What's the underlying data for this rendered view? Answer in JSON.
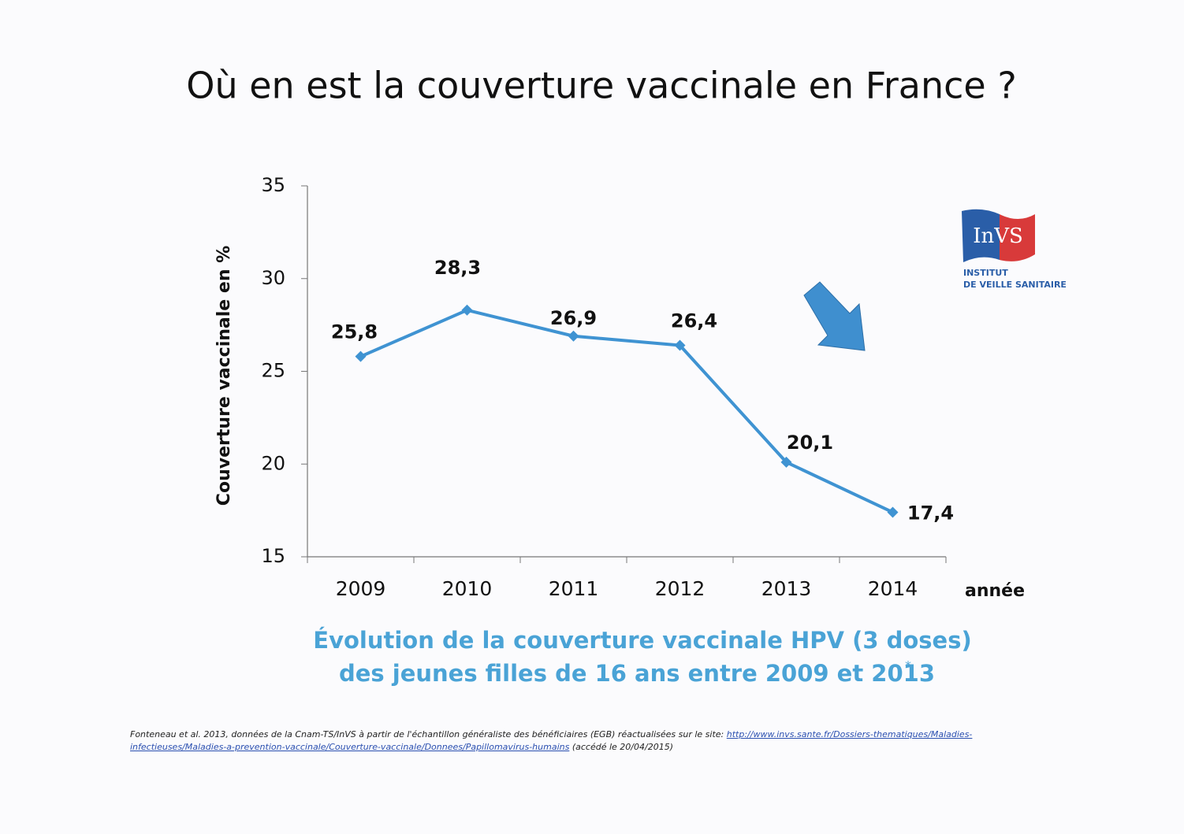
{
  "chart_data": {
    "type": "line",
    "title": "Où en est la couverture vaccinale en France ?",
    "subtitle": [
      "Évolution de la couverture vaccinale HPV (3 doses)",
      "des jeunes filles de 16 ans entre 2009 et 2013"
    ],
    "subtitle_note": "*",
    "y_label": "Couverture vaccinale en %",
    "x_label": "année",
    "categories": [
      "2009",
      "2010",
      "2011",
      "2012",
      "2013",
      "2014"
    ],
    "values": [
      25.8,
      28.3,
      26.9,
      26.4,
      20.1,
      17.4
    ],
    "value_labels": [
      "25,8",
      "28,3",
      "26,9",
      "26,4",
      "20,1",
      "17,4"
    ],
    "color": "#3f93d2",
    "ylim": [
      15,
      35
    ],
    "yticks": [
      15,
      20,
      25,
      30,
      35
    ]
  },
  "logo": {
    "name": "InVS",
    "line1": "INSTITUT",
    "line2": "DE VEILLE SANITAIRE"
  },
  "footnote": {
    "text": "Fonteneau et al. 2013, données de la Cnam-TS/InVS à partir de l'échantillon généraliste des bénéficiaires (EGB) réactualisées sur le site: ",
    "link": "http://www.invs.sante.fr/Dossiers-thematiques/Maladies-infectieuses/Maladies-a-prevention-vaccinale/Couverture-vaccinale/Donnees/Papillomavirus-humains",
    "accessed": " (accédé le 20/04/2015)"
  }
}
